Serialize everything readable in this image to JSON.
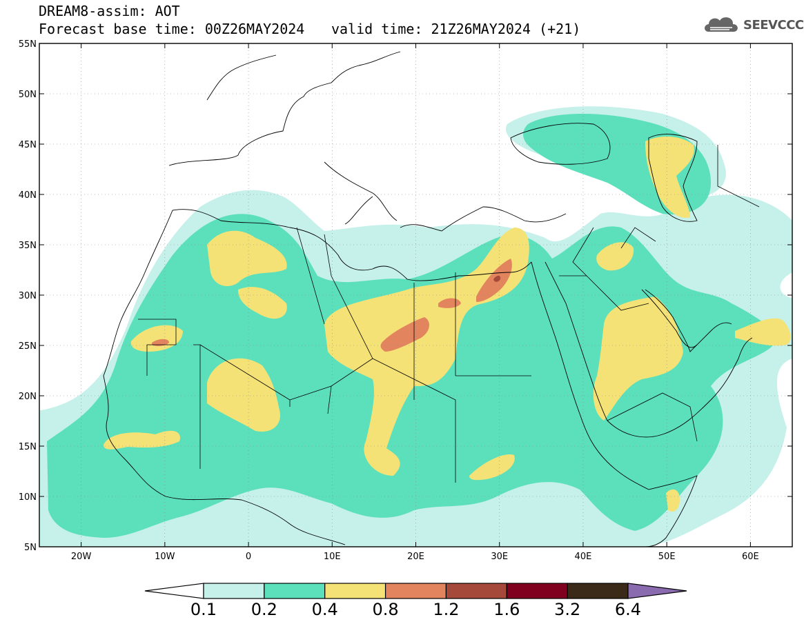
{
  "title": {
    "line1": "DREAM8-assim: AOT",
    "line2": "Forecast base time: 00Z26MAY2024",
    "valid": "valid time: 21Z26MAY2024 (+21)"
  },
  "logo": {
    "icon": "cloud-icon",
    "text": "SEEVCCC"
  },
  "map": {
    "lon_range": [
      -25,
      65
    ],
    "lat_range": [
      5,
      55
    ],
    "lat_ticks": [
      {
        "value": 55,
        "label": "55N"
      },
      {
        "value": 50,
        "label": "50N"
      },
      {
        "value": 45,
        "label": "45N"
      },
      {
        "value": 40,
        "label": "40N"
      },
      {
        "value": 35,
        "label": "35N"
      },
      {
        "value": 30,
        "label": "30N"
      },
      {
        "value": 25,
        "label": "25N"
      },
      {
        "value": 20,
        "label": "20N"
      },
      {
        "value": 15,
        "label": "15N"
      },
      {
        "value": 10,
        "label": "10N"
      },
      {
        "value": 5,
        "label": "5N"
      }
    ],
    "lon_ticks": [
      {
        "value": -20,
        "label": "20W"
      },
      {
        "value": -10,
        "label": "10W"
      },
      {
        "value": 0,
        "label": "0"
      },
      {
        "value": 10,
        "label": "10E"
      },
      {
        "value": 20,
        "label": "20E"
      },
      {
        "value": 30,
        "label": "30E"
      },
      {
        "value": 40,
        "label": "40E"
      },
      {
        "value": 50,
        "label": "50E"
      },
      {
        "value": 60,
        "label": "60E"
      }
    ],
    "grid": "dotted"
  },
  "colorbar": {
    "levels": [
      "0.1",
      "0.2",
      "0.4",
      "0.8",
      "1.2",
      "1.6",
      "3.2",
      "6.4"
    ],
    "colors": [
      "#ffffff",
      "#c6f0ea",
      "#5ce0bc",
      "#f5e276",
      "#e2855e",
      "#a54a3a",
      "#800020",
      "#3c2a18",
      "#8b6bb0"
    ]
  },
  "aot_fields": {
    "light": "#c6f0ea",
    "mid": "#5ce0bc",
    "high": "#f5e276",
    "peak": "#e2855e",
    "extreme": "#a54a3a"
  }
}
